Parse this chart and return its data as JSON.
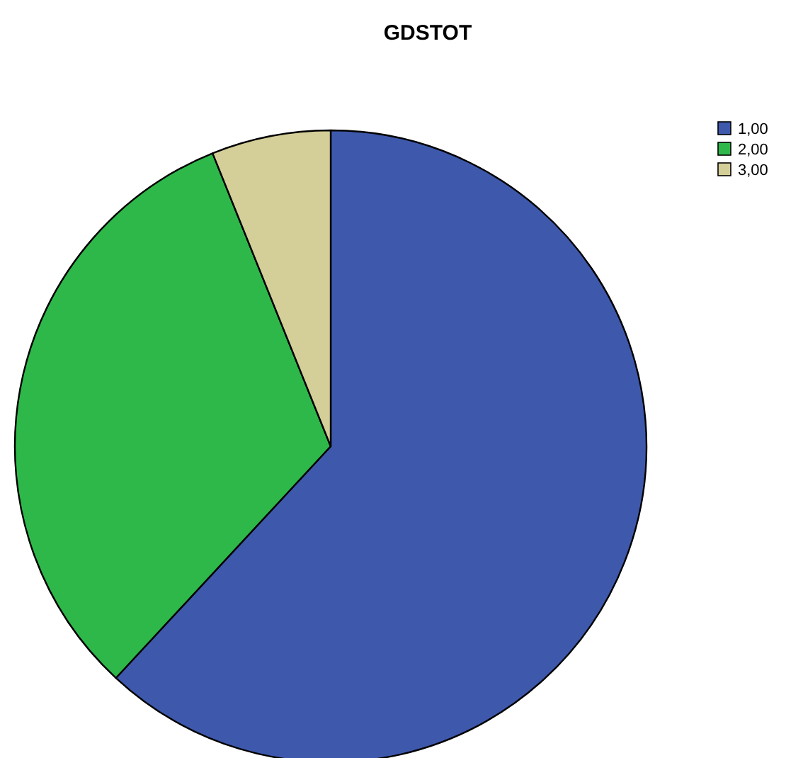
{
  "chart_data": {
    "type": "pie",
    "title": "GDSTOT",
    "categories": [
      "1,00",
      "2,00",
      "3,00"
    ],
    "values": [
      61.9,
      32.0,
      6.1
    ],
    "colors": [
      "#3e58ac",
      "#2eb84a",
      "#d4ce98"
    ],
    "legend": "top right"
  }
}
